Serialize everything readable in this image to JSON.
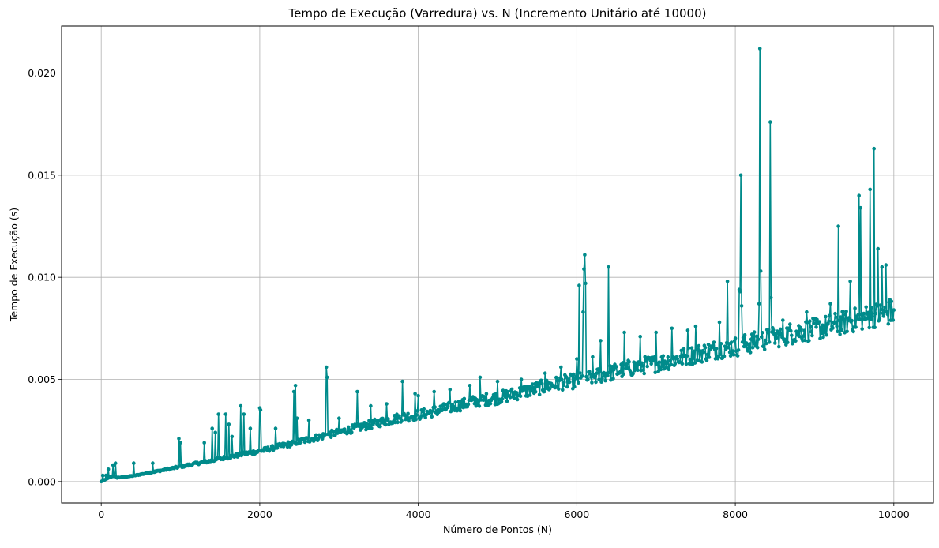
{
  "chart_data": {
    "type": "line",
    "title": "Tempo de Execução (Varredura) vs. N (Incremento Unitário até 10000)",
    "xlabel": "Número de Pontos (N)",
    "ylabel": "Tempo de Execução (s)",
    "xlim": [
      -500,
      10500
    ],
    "ylim": [
      -0.00105,
      0.0223
    ],
    "x_ticks": [
      0,
      2000,
      4000,
      6000,
      8000,
      10000
    ],
    "x_tick_labels": [
      "0",
      "2000",
      "4000",
      "6000",
      "8000",
      "10000"
    ],
    "y_ticks": [
      0.0,
      0.005,
      0.01,
      0.015,
      0.02
    ],
    "y_tick_labels": [
      "0.000",
      "0.005",
      "0.010",
      "0.015",
      "0.020"
    ],
    "grid": true,
    "marker": "circle",
    "line_color": "#008b8b",
    "series": [
      {
        "x": [
          0,
          50,
          100,
          150,
          200,
          300,
          400,
          500,
          600,
          700,
          800,
          900,
          1000,
          1200,
          1400,
          1600,
          1800,
          2000,
          2200,
          2400,
          2600,
          2800,
          3000,
          3200,
          3400,
          3600,
          3800,
          4000,
          4200,
          4400,
          4600,
          4800,
          5000,
          5200,
          5400,
          5600,
          5800,
          6000,
          6200,
          6400,
          6600,
          6800,
          7000,
          7200,
          7400,
          7600,
          7800,
          8000,
          8200,
          8400,
          8600,
          8800,
          9000,
          9200,
          9400,
          9600,
          9800,
          10000
        ],
        "y": [
          0.0,
          0.0001,
          0.0002,
          0.0003,
          0.0002,
          0.00025,
          0.0003,
          0.00038,
          0.00046,
          0.00054,
          0.00062,
          0.0007,
          0.00078,
          0.00095,
          0.0011,
          0.00128,
          0.00145,
          0.0016,
          0.0018,
          0.002,
          0.0022,
          0.0024,
          0.0026,
          0.0028,
          0.003,
          0.0032,
          0.0034,
          0.0035,
          0.0037,
          0.0039,
          0.0041,
          0.0043,
          0.0044,
          0.0046,
          0.0048,
          0.005,
          0.0052,
          0.0053,
          0.0055,
          0.0057,
          0.0059,
          0.0061,
          0.0062,
          0.0064,
          0.0066,
          0.0068,
          0.007,
          0.0071,
          0.0073,
          0.0075,
          0.0077,
          0.0079,
          0.008,
          0.0082,
          0.0084,
          0.0086,
          0.0088,
          0.0089
        ]
      }
    ],
    "spikes": [
      {
        "x": 20,
        "y": 0.0003
      },
      {
        "x": 60,
        "y": 0.0003
      },
      {
        "x": 90,
        "y": 0.0006
      },
      {
        "x": 150,
        "y": 0.0008
      },
      {
        "x": 180,
        "y": 0.0009
      },
      {
        "x": 410,
        "y": 0.0009
      },
      {
        "x": 650,
        "y": 0.0009
      },
      {
        "x": 980,
        "y": 0.0021
      },
      {
        "x": 1000,
        "y": 0.0019
      },
      {
        "x": 1300,
        "y": 0.0019
      },
      {
        "x": 1400,
        "y": 0.0026
      },
      {
        "x": 1440,
        "y": 0.0024
      },
      {
        "x": 1480,
        "y": 0.0033
      },
      {
        "x": 1570,
        "y": 0.0033
      },
      {
        "x": 1610,
        "y": 0.0028
      },
      {
        "x": 1650,
        "y": 0.0022
      },
      {
        "x": 1760,
        "y": 0.0037
      },
      {
        "x": 1800,
        "y": 0.0033
      },
      {
        "x": 1880,
        "y": 0.0026
      },
      {
        "x": 2000,
        "y": 0.0036
      },
      {
        "x": 2010,
        "y": 0.0035
      },
      {
        "x": 2200,
        "y": 0.0026
      },
      {
        "x": 2430,
        "y": 0.0044
      },
      {
        "x": 2450,
        "y": 0.0047
      },
      {
        "x": 2470,
        "y": 0.0031
      },
      {
        "x": 2620,
        "y": 0.003
      },
      {
        "x": 2840,
        "y": 0.0056
      },
      {
        "x": 2850,
        "y": 0.0051
      },
      {
        "x": 3000,
        "y": 0.0031
      },
      {
        "x": 3230,
        "y": 0.0044
      },
      {
        "x": 3400,
        "y": 0.0037
      },
      {
        "x": 3600,
        "y": 0.0038
      },
      {
        "x": 3800,
        "y": 0.0049
      },
      {
        "x": 3960,
        "y": 0.0043
      },
      {
        "x": 4000,
        "y": 0.0042
      },
      {
        "x": 4200,
        "y": 0.0044
      },
      {
        "x": 4400,
        "y": 0.0045
      },
      {
        "x": 4650,
        "y": 0.0047
      },
      {
        "x": 4780,
        "y": 0.0051
      },
      {
        "x": 5000,
        "y": 0.0049
      },
      {
        "x": 5300,
        "y": 0.005
      },
      {
        "x": 5600,
        "y": 0.0053
      },
      {
        "x": 5800,
        "y": 0.0056
      },
      {
        "x": 6000,
        "y": 0.006
      },
      {
        "x": 6030,
        "y": 0.0096
      },
      {
        "x": 6080,
        "y": 0.0083
      },
      {
        "x": 6090,
        "y": 0.0104
      },
      {
        "x": 6100,
        "y": 0.0111
      },
      {
        "x": 6110,
        "y": 0.0097
      },
      {
        "x": 6200,
        "y": 0.0061
      },
      {
        "x": 6300,
        "y": 0.0069
      },
      {
        "x": 6400,
        "y": 0.0105
      },
      {
        "x": 6600,
        "y": 0.0073
      },
      {
        "x": 6800,
        "y": 0.0071
      },
      {
        "x": 7000,
        "y": 0.0073
      },
      {
        "x": 7200,
        "y": 0.0075
      },
      {
        "x": 7400,
        "y": 0.0074
      },
      {
        "x": 7500,
        "y": 0.0076
      },
      {
        "x": 7800,
        "y": 0.0078
      },
      {
        "x": 7900,
        "y": 0.0098
      },
      {
        "x": 8050,
        "y": 0.0094
      },
      {
        "x": 8060,
        "y": 0.0093
      },
      {
        "x": 8070,
        "y": 0.015
      },
      {
        "x": 8080,
        "y": 0.0086
      },
      {
        "x": 8300,
        "y": 0.0087
      },
      {
        "x": 8310,
        "y": 0.0212
      },
      {
        "x": 8320,
        "y": 0.0103
      },
      {
        "x": 8440,
        "y": 0.0176
      },
      {
        "x": 8450,
        "y": 0.009
      },
      {
        "x": 8600,
        "y": 0.0079
      },
      {
        "x": 8900,
        "y": 0.0083
      },
      {
        "x": 9200,
        "y": 0.0087
      },
      {
        "x": 9300,
        "y": 0.0125
      },
      {
        "x": 9450,
        "y": 0.0098
      },
      {
        "x": 9560,
        "y": 0.014
      },
      {
        "x": 9580,
        "y": 0.0134
      },
      {
        "x": 9700,
        "y": 0.0143
      },
      {
        "x": 9750,
        "y": 0.0163
      },
      {
        "x": 9800,
        "y": 0.0114
      },
      {
        "x": 9850,
        "y": 0.0105
      },
      {
        "x": 9900,
        "y": 0.0106
      },
      {
        "x": 9950,
        "y": 0.0089
      },
      {
        "x": 10000,
        "y": 0.0084
      }
    ]
  }
}
